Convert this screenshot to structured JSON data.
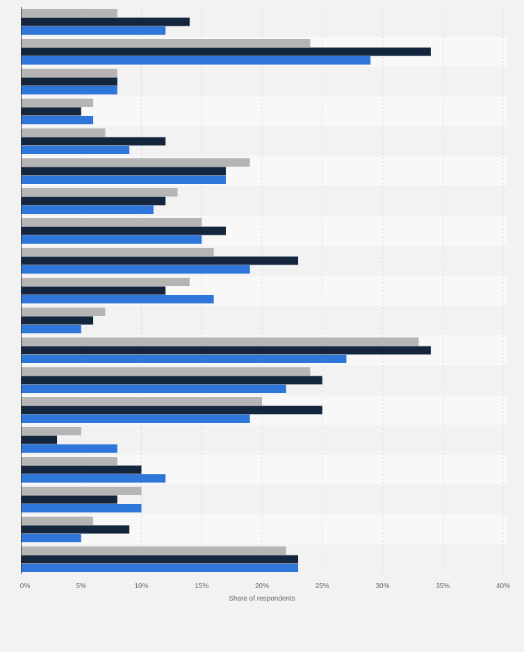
{
  "chart_data": {
    "type": "bar",
    "orientation": "horizontal",
    "title": "",
    "xlabel": "Share of respondents",
    "ylabel": "",
    "xlim": [
      0,
      40
    ],
    "x_ticks": [
      0,
      5,
      10,
      15,
      20,
      25,
      30,
      35,
      40
    ],
    "x_tick_labels": [
      "0%",
      "5%",
      "10%",
      "15%",
      "20%",
      "25%",
      "30%",
      "35%",
      "40%"
    ],
    "grid": true,
    "categories": [
      "",
      "",
      "",
      "",
      "",
      "",
      "",
      "",
      "",
      "",
      "",
      "",
      "",
      "",
      "",
      "",
      "",
      "",
      ""
    ],
    "series": [
      {
        "name": "",
        "color": "#b5b5b5",
        "values": [
          8,
          24,
          8,
          6,
          7,
          19,
          13,
          15,
          16,
          14,
          7,
          33,
          24,
          20,
          5,
          8,
          10,
          6,
          22
        ]
      },
      {
        "name": "",
        "color": "#14263e",
        "values": [
          14,
          34,
          8,
          5,
          12,
          17,
          12,
          17,
          23,
          12,
          6,
          34,
          25,
          25,
          3,
          10,
          8,
          9,
          23
        ]
      },
      {
        "name": "",
        "color": "#2f76db",
        "values": [
          12,
          29,
          8,
          6,
          9,
          17,
          11,
          15,
          19,
          16,
          5,
          27,
          22,
          19,
          8,
          12,
          10,
          5,
          23
        ]
      }
    ]
  }
}
